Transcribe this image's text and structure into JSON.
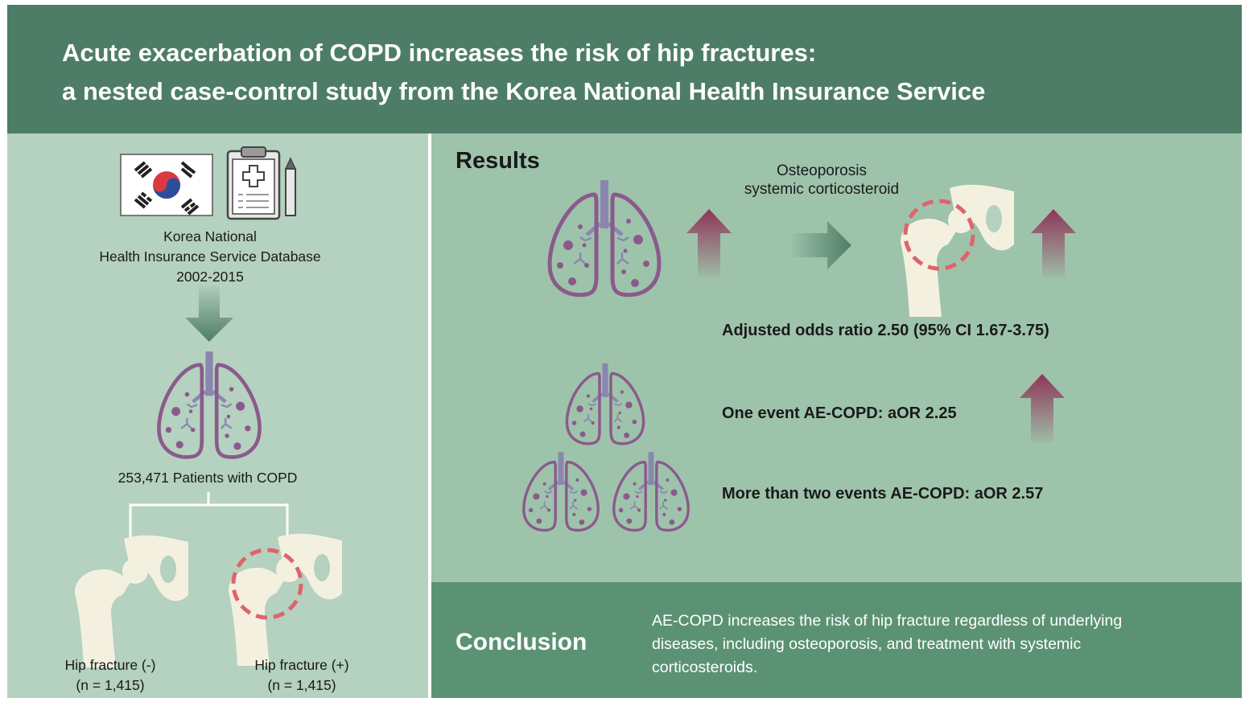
{
  "title": {
    "line1": "Acute exacerbation of COPD increases the risk of hip fractures:",
    "line2": "a nested case-control study from the Korea National Health Insurance Service"
  },
  "database": {
    "line1": "Korea National",
    "line2": "Health Insurance Service Database",
    "line3": "2002-2015"
  },
  "patients": "253,471 Patients with COPD",
  "groups": {
    "negative": {
      "label": "Hip fracture (-)",
      "n": "(n = 1,415)"
    },
    "positive": {
      "label": "Hip fracture (+)",
      "n": "(n = 1,415)"
    }
  },
  "results": {
    "heading": "Results",
    "factors_line1": "Osteoporosis",
    "factors_line2": "systemic corticosteroid",
    "adjusted_or": "Adjusted odds ratio 2.50 (95% CI 1.67-3.75)",
    "one_event": "One event AE-COPD: aOR 2.25",
    "two_events": "More than two events AE-COPD: aOR 2.57"
  },
  "conclusion": {
    "heading": "Conclusion",
    "line1": "AE-COPD increases the risk of hip fracture regardless of underlying",
    "line2": "diseases, including osteoporosis, and treatment with systemic",
    "line3": "corticosteroids."
  },
  "colors": {
    "header": "#4e7d67",
    "left_panel": "#b5d1bf",
    "right_panel": "#9ec3ab",
    "conclusion_panel": "#5c9274",
    "lung": "#8b5a8c",
    "arrow_up": "#8e3558",
    "arrow_green": "#4e7d67",
    "fracture_circle": "#e0636b",
    "bone": "#f4f0e0"
  },
  "icons": [
    "korea-flag-icon",
    "clipboard-icon",
    "pencil-icon",
    "lungs-icon",
    "hip-bone-icon",
    "arrow-up-icon",
    "arrow-right-icon",
    "arrow-down-icon"
  ]
}
